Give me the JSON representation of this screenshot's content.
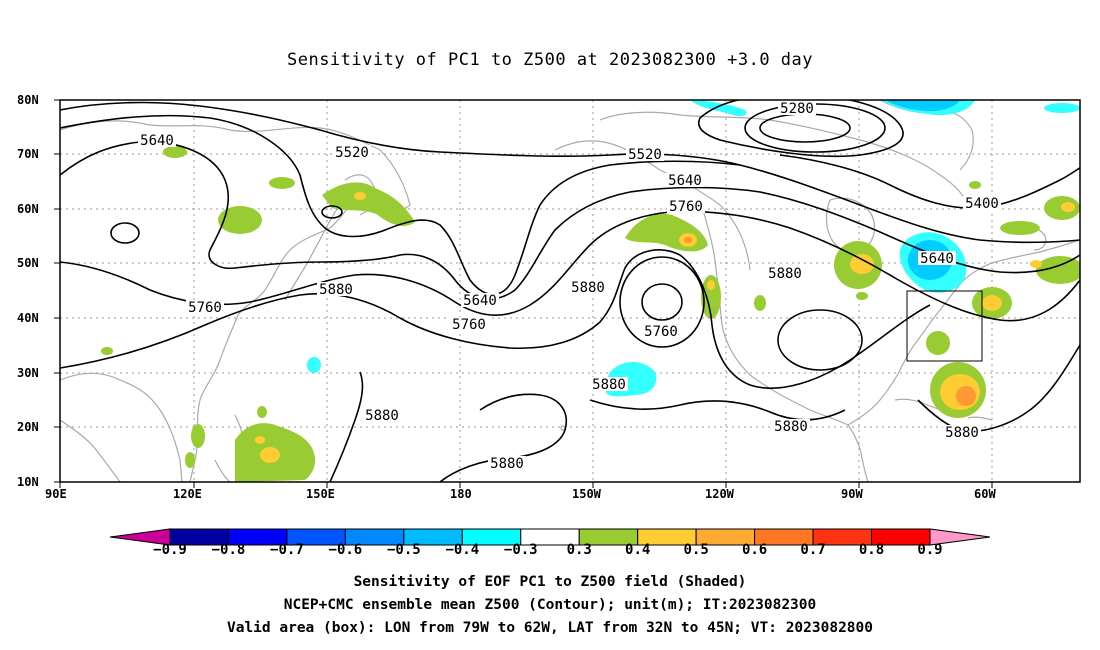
{
  "title": "Sensitivity of PC1 to Z500 at 2023082300 +3.0 day",
  "map": {
    "lon_labels": [
      "90E",
      "120E",
      "150E",
      "180",
      "150W",
      "120W",
      "90W",
      "60W"
    ],
    "lat_labels": [
      "80N",
      "70N",
      "60N",
      "50N",
      "40N",
      "30N",
      "20N",
      "10N"
    ],
    "contour_labels": [
      "5280",
      "5640",
      "5520",
      "5520",
      "5640",
      "5760",
      "5400",
      "5640",
      "5880",
      "5880",
      "5640",
      "5760",
      "5760",
      "5880",
      "5760",
      "5880",
      "5880",
      "5880",
      "5880",
      "5880"
    ],
    "valid_box": {
      "lon_range": "79W–62W",
      "lat_range": "32N–45N"
    },
    "colors": {
      "land_outline": "#aaaaaa",
      "positive_low": "#99cc33",
      "positive_mid": "#ffcc33",
      "positive_high": "#ff8800",
      "negative_low": "#33ffff",
      "negative_mid": "#00ccff"
    }
  },
  "colorbar": {
    "labels": [
      "−0.9",
      "−0.8",
      "−0.7",
      "−0.6",
      "−0.5",
      "−0.4",
      "−0.3",
      "0.3",
      "0.4",
      "0.5",
      "0.6",
      "0.7",
      "0.8",
      "0.9"
    ],
    "colors": [
      "#0000a0",
      "#0000ff",
      "#0055ff",
      "#0088ff",
      "#00bbff",
      "#00ffff",
      "#ffffff",
      "#99cc33",
      "#ffcc33",
      "#ffaa33",
      "#ff7722",
      "#ff3311",
      "#ff0000"
    ],
    "left_arrow_color": "#cc0099",
    "right_arrow_color": "#ff99cc"
  },
  "captions": {
    "line1": "Sensitivity of EOF PC1 to Z500 field (Shaded)",
    "line2": "NCEP+CMC ensemble mean Z500 (Contour); unit(m); IT:2023082300",
    "line3": "Valid area (box): LON from 79W to 62W, LAT from 32N to 45N; VT: 2023082800"
  }
}
